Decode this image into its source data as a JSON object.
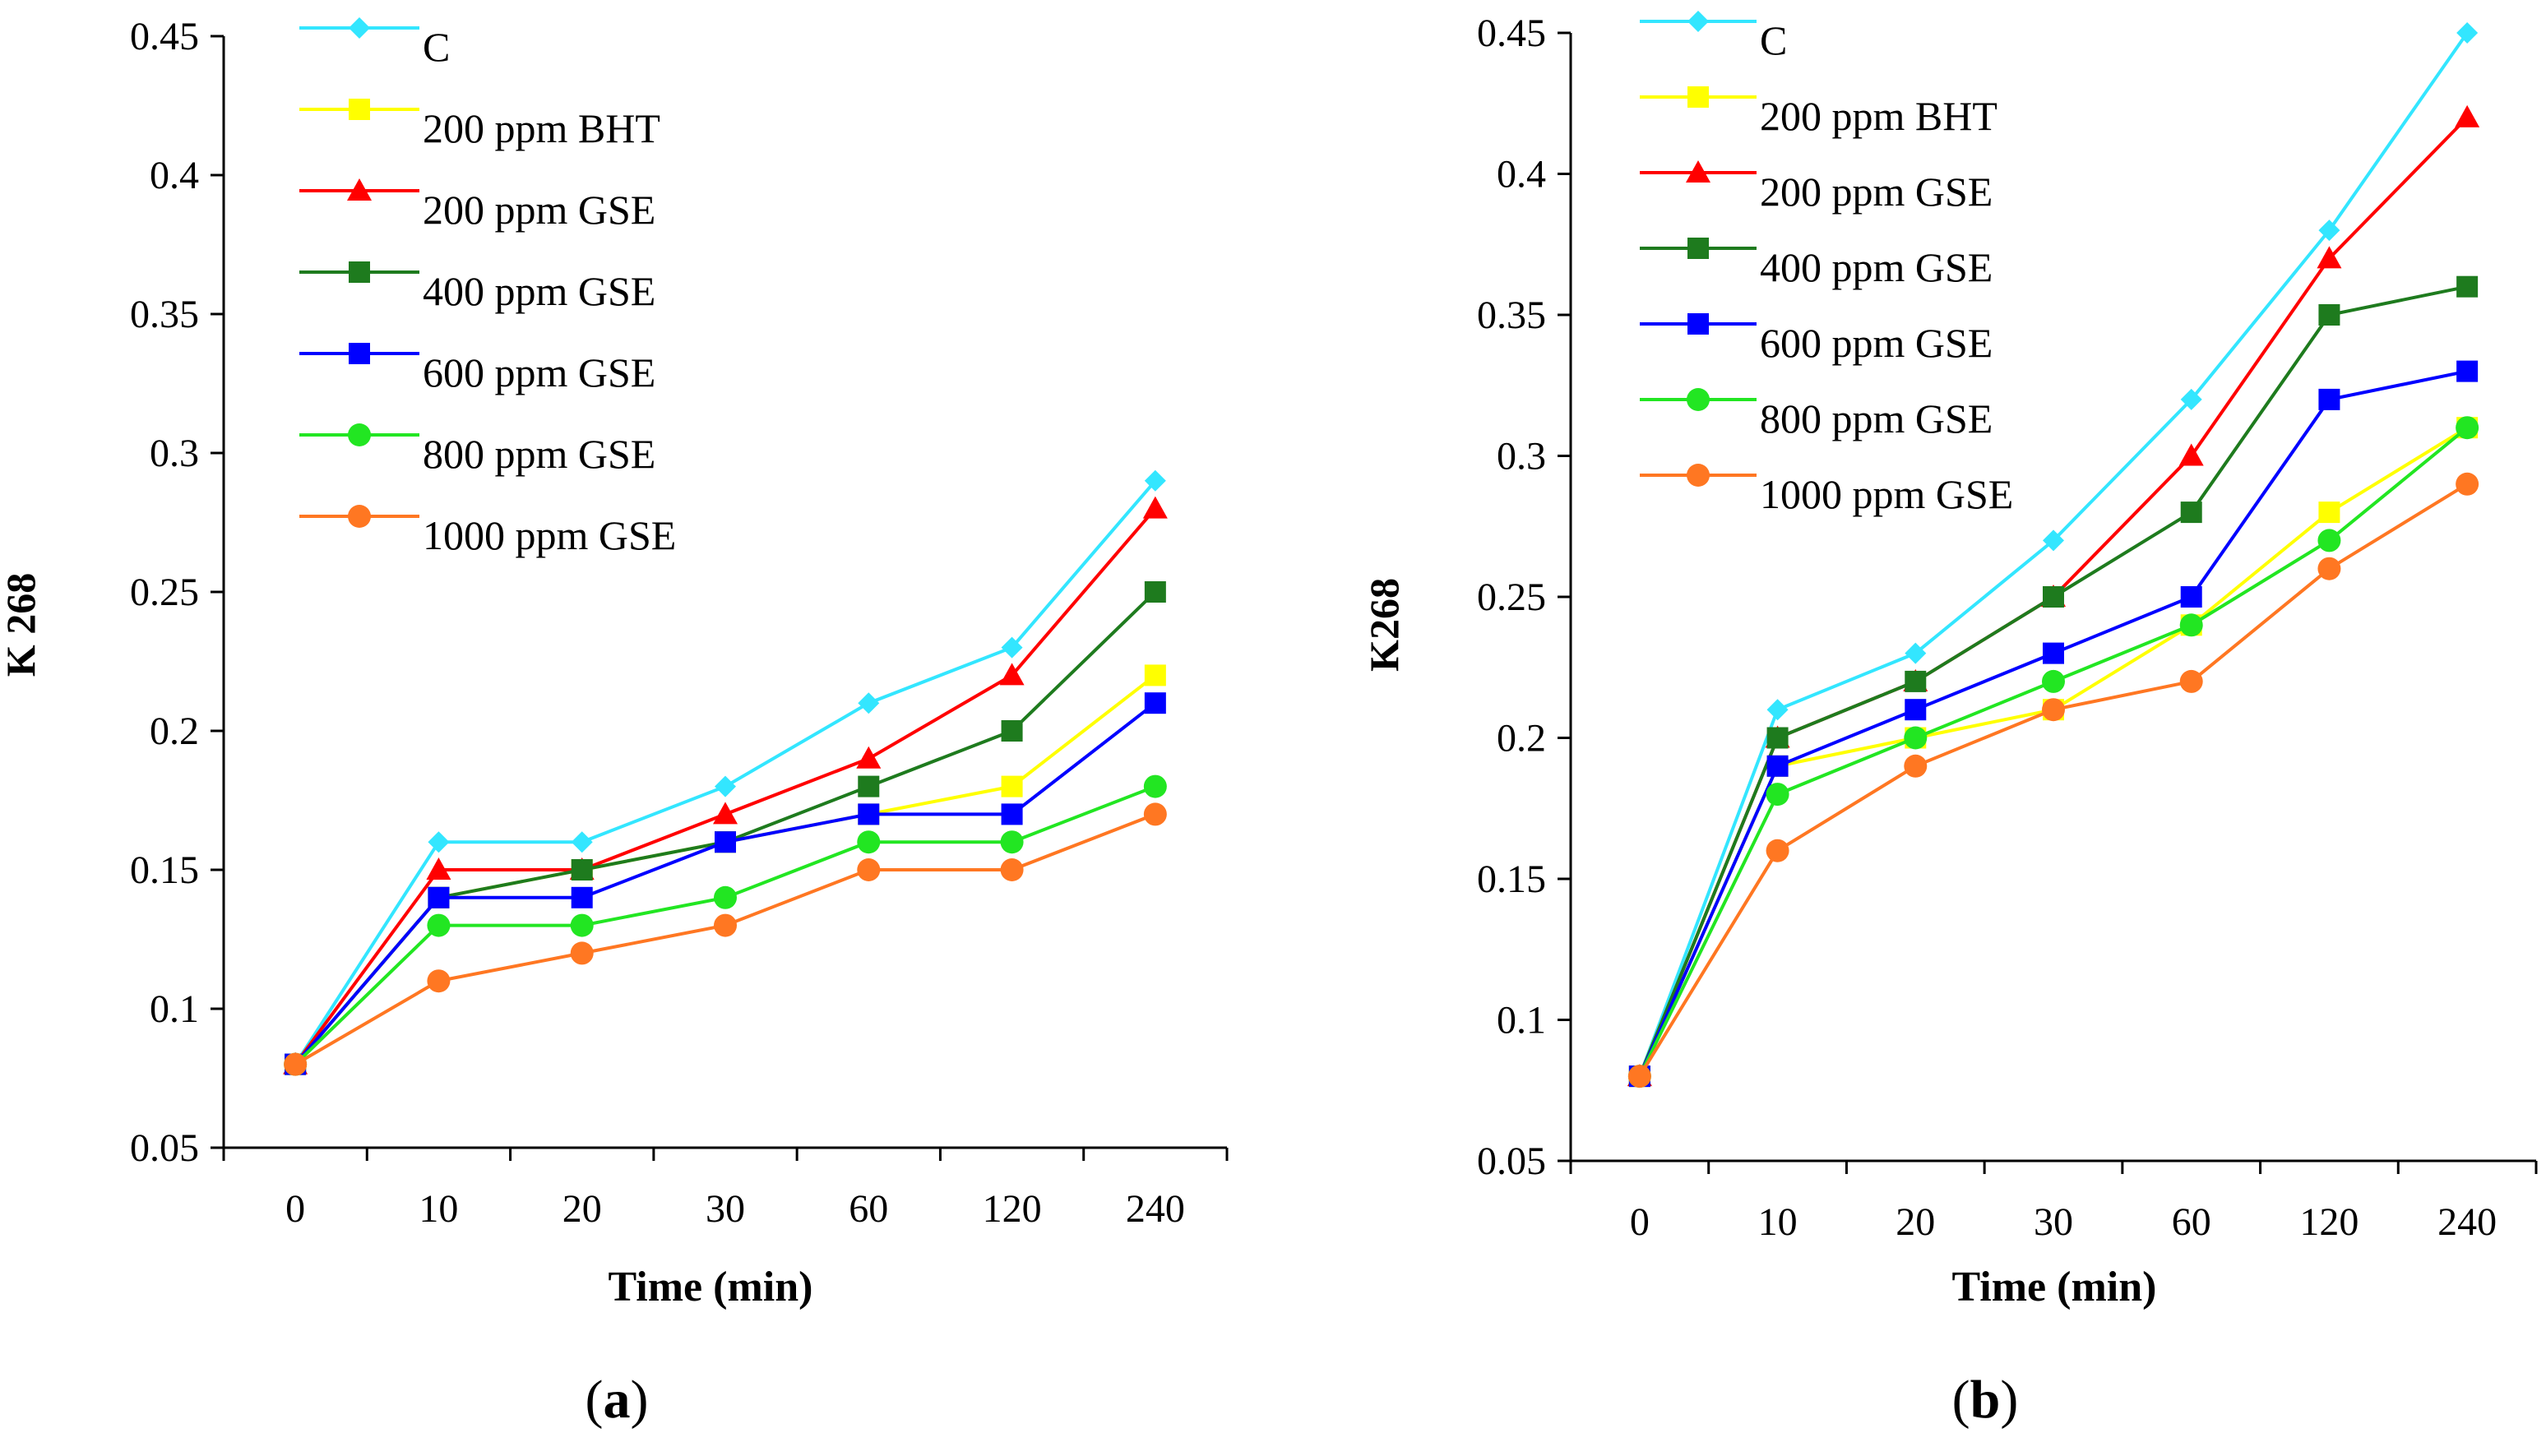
{
  "chart_data": [
    {
      "type": "line",
      "panel": "a",
      "categories": [
        "0",
        "10",
        "20",
        "30",
        "60",
        "120",
        "240"
      ],
      "xlabel": "Time (min)",
      "ylabel": "K 268",
      "ylim": [
        0.05,
        0.45
      ],
      "yticks": [
        "0.05",
        "0.1",
        "0.15",
        "0.2",
        "0.25",
        "0.3",
        "0.35",
        "0.4",
        "0.45"
      ],
      "legend_position": "top-left",
      "series": [
        {
          "name": "C",
          "color": "#33E6FF",
          "marker": "diamond",
          "values": [
            0.08,
            0.16,
            0.16,
            0.18,
            0.21,
            0.23,
            0.29
          ]
        },
        {
          "name": "200 ppm BHT",
          "color": "#FFFF00",
          "marker": "square",
          "values": [
            0.08,
            0.14,
            0.15,
            0.16,
            0.17,
            0.18,
            0.22
          ]
        },
        {
          "name": "200 ppm GSE",
          "color": "#FF0000",
          "marker": "triangle",
          "values": [
            0.08,
            0.15,
            0.15,
            0.17,
            0.19,
            0.22,
            0.28
          ]
        },
        {
          "name": "400 ppm GSE",
          "color": "#1E7B1E",
          "marker": "square",
          "values": [
            0.08,
            0.14,
            0.15,
            0.16,
            0.18,
            0.2,
            0.25
          ]
        },
        {
          "name": "600 ppm GSE",
          "color": "#0000FF",
          "marker": "square",
          "values": [
            0.08,
            0.14,
            0.14,
            0.16,
            0.17,
            0.17,
            0.21
          ]
        },
        {
          "name": "800 ppm GSE",
          "color": "#22E622",
          "marker": "circle",
          "values": [
            0.08,
            0.13,
            0.13,
            0.14,
            0.16,
            0.16,
            0.18
          ]
        },
        {
          "name": "1000 ppm GSE",
          "color": "#FF7722",
          "marker": "circle",
          "values": [
            0.08,
            0.11,
            0.12,
            0.13,
            0.15,
            0.15,
            0.17
          ]
        }
      ]
    },
    {
      "type": "line",
      "panel": "b",
      "categories": [
        "0",
        "10",
        "20",
        "30",
        "60",
        "120",
        "240"
      ],
      "xlabel": "Time (min)",
      "ylabel": "K268",
      "ylim": [
        0.05,
        0.45
      ],
      "yticks": [
        "0.05",
        "0.1",
        "0.15",
        "0.2",
        "0.25",
        "0.3",
        "0.35",
        "0.4",
        "0.45"
      ],
      "legend_position": "top-left",
      "series": [
        {
          "name": "C",
          "color": "#33E6FF",
          "marker": "diamond",
          "values": [
            0.08,
            0.21,
            0.23,
            0.27,
            0.32,
            0.38,
            0.45
          ]
        },
        {
          "name": "200 ppm BHT",
          "color": "#FFFF00",
          "marker": "square",
          "values": [
            0.08,
            0.19,
            0.2,
            0.21,
            0.24,
            0.28,
            0.31
          ]
        },
        {
          "name": "200 ppm GSE",
          "color": "#FF0000",
          "marker": "triangle",
          "values": [
            0.08,
            0.2,
            0.22,
            0.25,
            0.3,
            0.37,
            0.42
          ]
        },
        {
          "name": "400 ppm GSE",
          "color": "#1E7B1E",
          "marker": "square",
          "values": [
            0.08,
            0.2,
            0.22,
            0.25,
            0.28,
            0.35,
            0.36
          ]
        },
        {
          "name": "600 ppm GSE",
          "color": "#0000FF",
          "marker": "square",
          "values": [
            0.08,
            0.19,
            0.21,
            0.23,
            0.25,
            0.32,
            0.33
          ]
        },
        {
          "name": "800 ppm GSE",
          "color": "#22E622",
          "marker": "circle",
          "values": [
            0.08,
            0.18,
            0.2,
            0.22,
            0.24,
            0.27,
            0.31
          ]
        },
        {
          "name": "1000 ppm GSE",
          "color": "#FF7722",
          "marker": "circle",
          "values": [
            0.08,
            0.16,
            0.19,
            0.21,
            0.22,
            0.26,
            0.29
          ]
        }
      ]
    }
  ],
  "captions": {
    "a": {
      "open": "(",
      "letter": "a",
      "close": ")"
    },
    "b": {
      "open": "(",
      "letter": "b",
      "close": ")"
    }
  }
}
